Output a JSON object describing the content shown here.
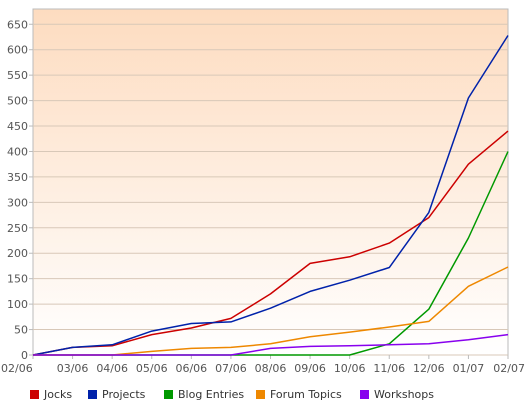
{
  "chart_data": {
    "type": "line",
    "categories": [
      "02/06",
      "03/06",
      "04/06",
      "05/06",
      "06/06",
      "07/06",
      "08/06",
      "09/06",
      "10/06",
      "11/06",
      "12/06",
      "01/07",
      "02/07"
    ],
    "y_ticks": [
      0,
      50,
      100,
      150,
      200,
      250,
      300,
      350,
      400,
      450,
      500,
      550,
      600,
      650
    ],
    "ylim": [
      0,
      680
    ],
    "grid": "horizontal",
    "legend_position": "bottom",
    "x": [
      0,
      0.5,
      1,
      1.5,
      2,
      2.5,
      3,
      3.5,
      4,
      4.5,
      5,
      5.5,
      6,
      6.5,
      7,
      7.5,
      8,
      8.5,
      9,
      9.5,
      10,
      10.5,
      11,
      11.5,
      12
    ],
    "series": [
      {
        "name": "Jocks",
        "color": "#cc0000",
        "values": [
          0,
          15,
          18,
          40,
          53,
          72,
          120,
          180,
          193,
          220,
          270,
          375,
          440
        ]
      },
      {
        "name": "Projects",
        "color": "#0022aa",
        "values": [
          0,
          15,
          20,
          47,
          62,
          65,
          92,
          125,
          147,
          172,
          280,
          505,
          628
        ]
      },
      {
        "name": "Blog Entries",
        "color": "#009900",
        "values": [
          0,
          0,
          0,
          0,
          0,
          0,
          0,
          0,
          0,
          22,
          90,
          230,
          400
        ]
      },
      {
        "name": "Forum Topics",
        "color": "#ee8800",
        "values": [
          0,
          0,
          0,
          7,
          13,
          15,
          22,
          36,
          45,
          55,
          66,
          135,
          173
        ]
      },
      {
        "name": "Workshops",
        "color": "#8800ee",
        "values": [
          0,
          0,
          0,
          0,
          0,
          0,
          13,
          17,
          18,
          20,
          22,
          30,
          40
        ]
      }
    ],
    "colors": {
      "plot_gradient_top": "#fddcc0",
      "plot_gradient_bottom": "#ffffff",
      "gridline": "#d8c8b8",
      "axis": "#bbbbbb"
    }
  }
}
